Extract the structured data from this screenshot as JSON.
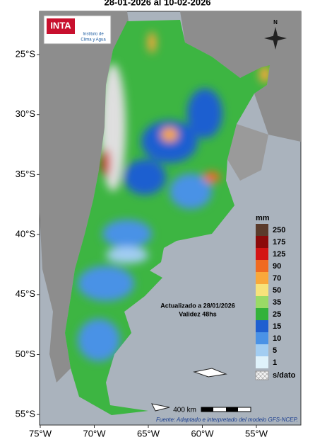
{
  "title": "28-01-2026 al 10-02-2026",
  "logo": {
    "brand": "INTA",
    "org_line1": "Instituto de",
    "org_line2": "Clima y Agua"
  },
  "compass": "N",
  "latitude_labels": [
    "25°S",
    "30°S",
    "35°S",
    "40°S",
    "45°S",
    "50°S",
    "55°S"
  ],
  "longitude_labels": [
    "75°W",
    "70°W",
    "65°W",
    "60°W",
    "55°W"
  ],
  "legend": {
    "unit": "mm",
    "entries": [
      {
        "label": "250",
        "color": "#5b3b2b"
      },
      {
        "label": "175",
        "color": "#8c0a0a"
      },
      {
        "label": "125",
        "color": "#d41414"
      },
      {
        "label": "90",
        "color": "#f06a20"
      },
      {
        "label": "70",
        "color": "#f9a83a"
      },
      {
        "label": "50",
        "color": "#f7e27a"
      },
      {
        "label": "35",
        "color": "#9ada66"
      },
      {
        "label": "25",
        "color": "#33b23a"
      },
      {
        "label": "15",
        "color": "#1f5fd0"
      },
      {
        "label": "10",
        "color": "#4a92e6"
      },
      {
        "label": "5",
        "color": "#a2cdf2"
      },
      {
        "label": "1",
        "color": "#dff2fb"
      }
    ],
    "no_data": "s/dato"
  },
  "notes": {
    "updated": "Actualizado a 28/01/2026",
    "validity": "Validez 48hs"
  },
  "scale_bar": "400 km",
  "source": "Fuente: Adaptado e interpretado del modelo GFS-NCEP."
}
